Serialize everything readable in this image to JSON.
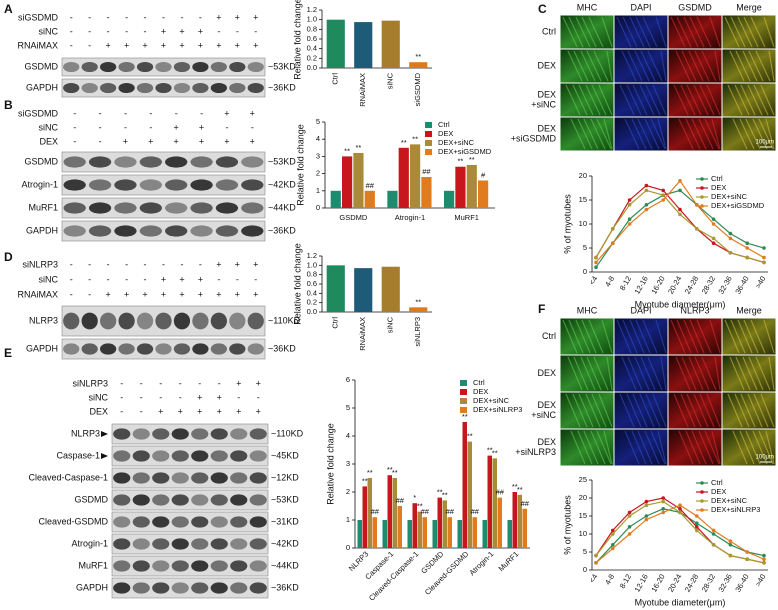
{
  "panel_labels": [
    "A",
    "B",
    "C",
    "D",
    "E",
    "F"
  ],
  "blots": [
    {
      "conditions": [
        {
          "name": "siGSDMD",
          "signs": [
            "-",
            "-",
            "-",
            "-",
            "-",
            "-",
            "-",
            "-",
            "+",
            "+",
            "+"
          ]
        },
        {
          "name": "siNC",
          "signs": [
            "-",
            "-",
            "-",
            "-",
            "-",
            "+",
            "+",
            "+",
            "-",
            "-",
            "-"
          ]
        },
        {
          "name": "RNAiMAX",
          "signs": [
            "-",
            "-",
            "+",
            "+",
            "+",
            "+",
            "+",
            "+",
            "+",
            "+",
            "+"
          ]
        }
      ],
      "bands": [
        {
          "name": "GSDMD",
          "size": "~53KD"
        },
        {
          "name": "GAPDH",
          "size": "~36KD"
        }
      ]
    },
    {
      "conditions": [
        {
          "name": "siGSDMD",
          "signs": [
            "-",
            "-",
            "-",
            "-",
            "-",
            "-",
            "+",
            "+"
          ]
        },
        {
          "name": "siNC",
          "signs": [
            "-",
            "-",
            "-",
            "-",
            "+",
            "+",
            "-",
            "-"
          ]
        },
        {
          "name": "DEX",
          "signs": [
            "-",
            "-",
            "+",
            "+",
            "+",
            "+",
            "+",
            "+"
          ]
        }
      ],
      "bands": [
        {
          "name": "GSDMD",
          "size": "~53KD"
        },
        {
          "name": "Atrogin-1",
          "size": "~42KD"
        },
        {
          "name": "MuRF1",
          "size": "~44KD"
        },
        {
          "name": "GAPDH",
          "size": "~36KD"
        }
      ]
    },
    {
      "conditions": [
        {
          "name": "siNLRP3",
          "signs": [
            "-",
            "-",
            "-",
            "-",
            "-",
            "-",
            "-",
            "-",
            "+",
            "+",
            "+"
          ]
        },
        {
          "name": "siNC",
          "signs": [
            "-",
            "-",
            "-",
            "-",
            "-",
            "+",
            "+",
            "+",
            "-",
            "-",
            "-"
          ]
        },
        {
          "name": "RNAiMAX",
          "signs": [
            "-",
            "-",
            "+",
            "+",
            "+",
            "+",
            "+",
            "+",
            "+",
            "+",
            "+"
          ]
        }
      ],
      "bands": [
        {
          "name": "NLRP3",
          "size": "~110KD"
        },
        {
          "name": "GAPDH",
          "size": "~36KD"
        }
      ]
    },
    {
      "conditions": [
        {
          "name": "siNLRP3",
          "signs": [
            "-",
            "-",
            "-",
            "-",
            "-",
            "-",
            "+",
            "+"
          ]
        },
        {
          "name": "siNC",
          "signs": [
            "-",
            "-",
            "-",
            "-",
            "+",
            "+",
            "-",
            "-"
          ]
        },
        {
          "name": "DEX",
          "signs": [
            "-",
            "-",
            "+",
            "+",
            "+",
            "+",
            "+",
            "+"
          ]
        }
      ],
      "bands": [
        {
          "name": "NLRP3",
          "size": "~110KD"
        },
        {
          "name": "Caspase-1",
          "size": "~45KD"
        },
        {
          "name": "Cleaved-Caspase-1",
          "size": "~12KD"
        },
        {
          "name": "GSDMD",
          "size": "~53KD"
        },
        {
          "name": "Cleaved-GSDMD",
          "size": "~31KD"
        },
        {
          "name": "Atrogin-1",
          "size": "~42KD"
        },
        {
          "name": "MuRF1",
          "size": "~44KD"
        },
        {
          "name": "GAPDH",
          "size": "~36KD"
        }
      ]
    }
  ],
  "images": [
    {
      "columns": [
        "MHC",
        "DAPI",
        "GSDMD",
        "Merge"
      ],
      "rows": [
        [
          "Ctrl"
        ],
        [
          "DEX"
        ],
        [
          "DEX",
          "+siNC"
        ],
        [
          "DEX",
          "+siGSDMD"
        ]
      ],
      "scale_bar": "100μm"
    },
    {
      "columns": [
        "MHC",
        "DAPI",
        "NLRP3",
        "Merge"
      ],
      "rows": [
        [
          "Ctrl"
        ],
        [
          "DEX"
        ],
        [
          "DEX",
          "+siNC"
        ],
        [
          "DEX",
          "+siNLRP3"
        ]
      ],
      "scale_bar": "100μm"
    }
  ],
  "chart_data": [
    {
      "type": "bar",
      "categories": [
        "Ctrl",
        "RNAiMAX",
        "siNC",
        "siGSDMD"
      ],
      "values": [
        1.0,
        0.95,
        0.98,
        0.12
      ],
      "colors": [
        "#1e8a5e",
        "#1d5b78",
        "#a57d2c",
        "#dd7a1e"
      ],
      "ylabel": "Relative fold change",
      "ylim": [
        0,
        1.2
      ],
      "yticks": [
        {
          "value": 0,
          "label": "0.0"
        },
        0.2,
        0.4,
        0.6,
        0.8,
        {
          "value": 1,
          "label": "1.0"
        },
        1.2
      ],
      "annotations": [
        {
          "category": "siGSDMD",
          "text": "**"
        }
      ]
    },
    {
      "type": "bar",
      "categories": [
        "GSDMD",
        "Atrogin-1",
        "MuRF1"
      ],
      "ylabel": "Relative fold change",
      "series": [
        {
          "name": "Ctrl",
          "color": "#1e8a6e",
          "values": [
            1,
            1,
            1
          ]
        },
        {
          "name": "DEX",
          "color": "#c8161d",
          "values": [
            3.0,
            3.5,
            2.4
          ],
          "annotations": [
            "**",
            "**",
            "**"
          ]
        },
        {
          "name": "DEX+siNC",
          "color": "#a88a3a",
          "values": [
            3.2,
            3.7,
            2.5
          ],
          "annotations": [
            "**",
            "**",
            "**"
          ]
        },
        {
          "name": "DEX+siGSDMD",
          "color": "#e07b1f",
          "values": [
            1.0,
            1.8,
            1.6
          ],
          "annotations": [
            "##",
            "##",
            "#"
          ]
        }
      ],
      "ylim": [
        0,
        5
      ],
      "yticks": [
        0,
        1,
        2,
        3,
        4,
        5
      ],
      "legend": "upper right"
    },
    {
      "type": "line",
      "categories": [
        "<4",
        "4-8",
        "8-12",
        "12-16",
        "16-20",
        "20-24",
        "24-28",
        "28-32",
        "32-36",
        "36-40",
        ">40"
      ],
      "series": [
        {
          "name": "Ctrl",
          "color": "#2e8b57",
          "values": [
            1,
            6,
            11,
            14,
            16,
            17,
            14,
            11,
            8,
            6,
            5
          ]
        },
        {
          "name": "DEX",
          "color": "#c8161d",
          "values": [
            3,
            9,
            15,
            18,
            17,
            13,
            9,
            6,
            4,
            3,
            2
          ]
        },
        {
          "name": "DEX+siNC",
          "color": "#a89a30",
          "values": [
            3,
            9,
            14,
            17,
            16,
            12,
            9,
            7,
            4,
            3,
            2
          ]
        },
        {
          "name": "DEX+siGSDMD",
          "color": "#e07b1f",
          "values": [
            2,
            6,
            10,
            13,
            15,
            19,
            14,
            10,
            7,
            5,
            3
          ]
        }
      ],
      "ylabel": "% of myotubes",
      "xlabel": "Myotube diameter(μm)",
      "ylim": [
        0,
        20
      ],
      "yticks": [
        0,
        5,
        10,
        15,
        20
      ],
      "legend": "upper right"
    },
    {
      "type": "bar",
      "categories": [
        "Ctrl",
        "RNAiMAX",
        "siNC",
        "siNLRP3"
      ],
      "values": [
        1.0,
        0.94,
        0.97,
        0.1
      ],
      "colors": [
        "#1e8a5e",
        "#1d5b78",
        "#a57d2c",
        "#dd7a1e"
      ],
      "ylabel": "Relative fold change",
      "ylim": [
        0,
        1.2
      ],
      "yticks": [
        {
          "value": 0,
          "label": "0.0"
        },
        0.2,
        0.4,
        0.6,
        0.8,
        {
          "value": 1,
          "label": "1.0"
        },
        1.2
      ],
      "annotations": [
        {
          "category": "siNLRP3",
          "text": "**"
        }
      ]
    },
    {
      "type": "bar",
      "categories": [
        "NLRP3",
        "Caspase-1",
        "Cleaved-Caspase-1",
        "GSDMD",
        "Cleaved-GSDMD",
        "Atrogin-1",
        "MuRF1"
      ],
      "ylabel": "Relative fold change",
      "series": [
        {
          "name": "Ctrl",
          "color": "#1e8a6e",
          "values": [
            1,
            1,
            1,
            1,
            1,
            1,
            1
          ]
        },
        {
          "name": "DEX",
          "color": "#c8161d",
          "values": [
            2.2,
            2.6,
            1.6,
            1.8,
            4.5,
            3.3,
            2.0
          ],
          "annotations": [
            "**",
            "**",
            "*",
            "**",
            "**",
            "**",
            "**"
          ]
        },
        {
          "name": "DEX+siNC",
          "color": "#a88a3a",
          "values": [
            2.5,
            2.5,
            1.3,
            1.7,
            3.8,
            3.2,
            1.9
          ],
          "annotations": [
            "**",
            "**",
            "**",
            "**",
            "**",
            "**",
            "**"
          ]
        },
        {
          "name": "DEX+siNLRP3",
          "color": "#e07b1f",
          "values": [
            1.1,
            1.5,
            1.1,
            1.1,
            1.1,
            1.8,
            1.4
          ],
          "annotations": [
            "##",
            "##",
            "##",
            "##",
            "##",
            "##",
            "##"
          ]
        }
      ],
      "ylim": [
        0,
        6
      ],
      "yticks": [
        0,
        1,
        2,
        3,
        4,
        5,
        6
      ],
      "legend": "upper right"
    },
    {
      "type": "line",
      "categories": [
        "<4",
        "4-8",
        "8-12",
        "12-16",
        "16-20",
        "20-24",
        "24-28",
        "28-32",
        "32-36",
        "36-40",
        ">40"
      ],
      "series": [
        {
          "name": "Ctrl",
          "color": "#2e8b57",
          "values": [
            2,
            7,
            12,
            15,
            17,
            16,
            13,
            10,
            7,
            5,
            4
          ]
        },
        {
          "name": "DEX",
          "color": "#c8161d",
          "values": [
            4,
            11,
            16,
            19,
            20,
            17,
            12,
            7,
            4,
            3,
            2
          ]
        },
        {
          "name": "DEX+siNC",
          "color": "#a89a30",
          "values": [
            4,
            10,
            15,
            18,
            19,
            16,
            11,
            7,
            4,
            3,
            2
          ]
        },
        {
          "name": "DEX+siNLRP3",
          "color": "#e07b1f",
          "values": [
            2,
            6,
            10,
            14,
            16,
            18,
            15,
            11,
            8,
            5,
            3
          ]
        }
      ],
      "ylabel": "% of myotubes",
      "xlabel": "Myotube diameter(μm)",
      "ylim": [
        0,
        25
      ],
      "yticks": [
        0,
        5,
        10,
        15,
        20,
        25
      ],
      "legend": "upper right"
    }
  ]
}
